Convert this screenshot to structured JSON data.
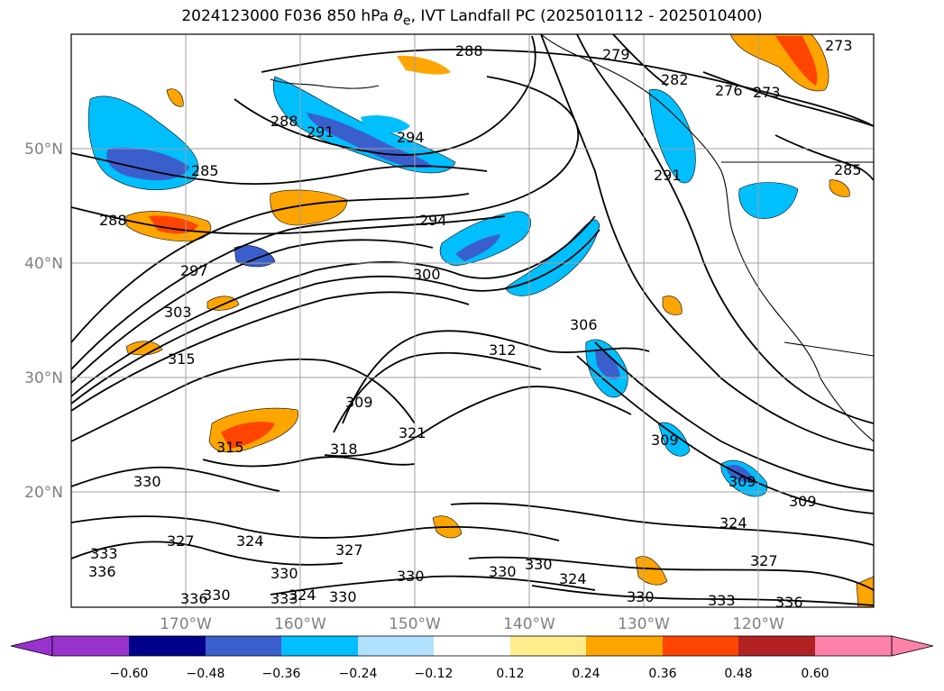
{
  "figure": {
    "title_prefix": "2024123000 F036 850 hPa ",
    "title_symbol": "θ",
    "title_subscript": "e",
    "title_suffix": ", IVT Landfall PC (2025010112 - 2025010400)"
  },
  "map": {
    "lat_labels": [
      "50°N",
      "40°N",
      "30°N",
      "20°N"
    ],
    "lon_labels": [
      "170°W",
      "160°W",
      "150°W",
      "140°W",
      "130°W",
      "120°W"
    ],
    "gridlines": true,
    "background": "#ffffff"
  },
  "colorbar": {
    "tick_labels": [
      "−0.60",
      "−0.48",
      "−0.36",
      "−0.24",
      "−0.12",
      "0.12",
      "0.24",
      "0.36",
      "0.48",
      "0.60"
    ],
    "colors": [
      "#9932cc",
      "#00008b",
      "#3a5fcd",
      "#00bfff",
      "#b0e2ff",
      "#ffffff",
      "#ffec8b",
      "#ffa500",
      "#ff4500",
      "#b22222",
      "#ff82ab"
    ],
    "extend": "both"
  },
  "contours": {
    "variable": "theta_e",
    "labels": [
      "288",
      "279",
      "282",
      "276",
      "273",
      "273",
      "285",
      "291",
      "294",
      "288",
      "285",
      "288",
      "291",
      "294",
      "297",
      "300",
      "303",
      "306",
      "312",
      "315",
      "309",
      "321",
      "318",
      "315",
      "309",
      "309",
      "309",
      "324",
      "330",
      "327",
      "324",
      "327",
      "330",
      "330",
      "330",
      "330",
      "324",
      "327",
      "330",
      "333",
      "336",
      "333",
      "336",
      "330",
      "333",
      "324",
      "330",
      "336"
    ]
  }
}
